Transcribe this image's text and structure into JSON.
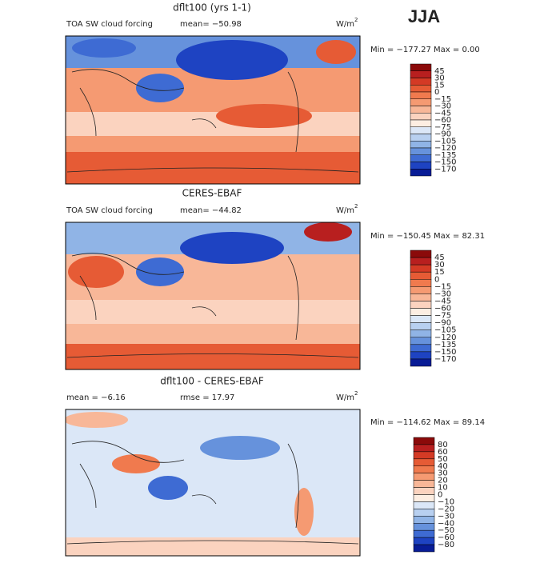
{
  "season": "JJA",
  "panels": [
    {
      "title": "dflt100 (yrs 1-1)",
      "left_text": "TOA SW cloud forcing",
      "middle_text": "mean= −50.98",
      "units": {
        "base": "W/m",
        "sup": "2"
      },
      "range_text": "Min = −177.27 Max =    0.00",
      "colorbar": {
        "labels": [
          "45",
          "30",
          "15",
          "0",
          "−15",
          "−30",
          "−45",
          "−60",
          "−75",
          "−90",
          "−105",
          "−120",
          "−135",
          "−150",
          "−170"
        ],
        "colors": [
          "#8b0a0a",
          "#b81f1f",
          "#d43a25",
          "#e65b35",
          "#f07a4e",
          "#f59a72",
          "#f8b798",
          "#fbd3bf",
          "#fdeee2",
          "#dbe7f7",
          "#b8d0f0",
          "#90b4e6",
          "#6692dc",
          "#3e6bd3",
          "#1e43c2",
          "#081c96"
        ]
      }
    },
    {
      "title": "CERES-EBAF",
      "left_text": "TOA SW cloud forcing",
      "middle_text": "mean= −44.82",
      "units": {
        "base": "W/m",
        "sup": "2"
      },
      "range_text": "Min = −150.45 Max =   82.31",
      "colorbar": {
        "labels": [
          "45",
          "30",
          "15",
          "0",
          "−15",
          "−30",
          "−45",
          "−60",
          "−75",
          "−90",
          "−105",
          "−120",
          "−135",
          "−150",
          "−170"
        ],
        "colors": [
          "#8b0a0a",
          "#b81f1f",
          "#d43a25",
          "#e65b35",
          "#f07a4e",
          "#f59a72",
          "#f8b798",
          "#fbd3bf",
          "#fdeee2",
          "#dbe7f7",
          "#b8d0f0",
          "#90b4e6",
          "#6692dc",
          "#3e6bd3",
          "#1e43c2",
          "#081c96"
        ]
      }
    },
    {
      "title": "dflt100 - CERES-EBAF",
      "left_text": "mean =   −6.16",
      "middle_text": "rmse =   17.97",
      "units": {
        "base": "W/m",
        "sup": "2"
      },
      "range_text": "Min = −114.62 Max =   89.14",
      "colorbar": {
        "labels": [
          "80",
          "60",
          "50",
          "40",
          "30",
          "20",
          "10",
          "0",
          "−10",
          "−20",
          "−30",
          "−40",
          "−50",
          "−60",
          "−80"
        ],
        "colors": [
          "#8b0a0a",
          "#b81f1f",
          "#d43a25",
          "#e65b35",
          "#f07a4e",
          "#f59a72",
          "#f8b798",
          "#fbd3bf",
          "#fdeee2",
          "#dbe7f7",
          "#b8d0f0",
          "#90b4e6",
          "#6692dc",
          "#3e6bd3",
          "#1e43c2",
          "#081c96"
        ]
      }
    }
  ]
}
